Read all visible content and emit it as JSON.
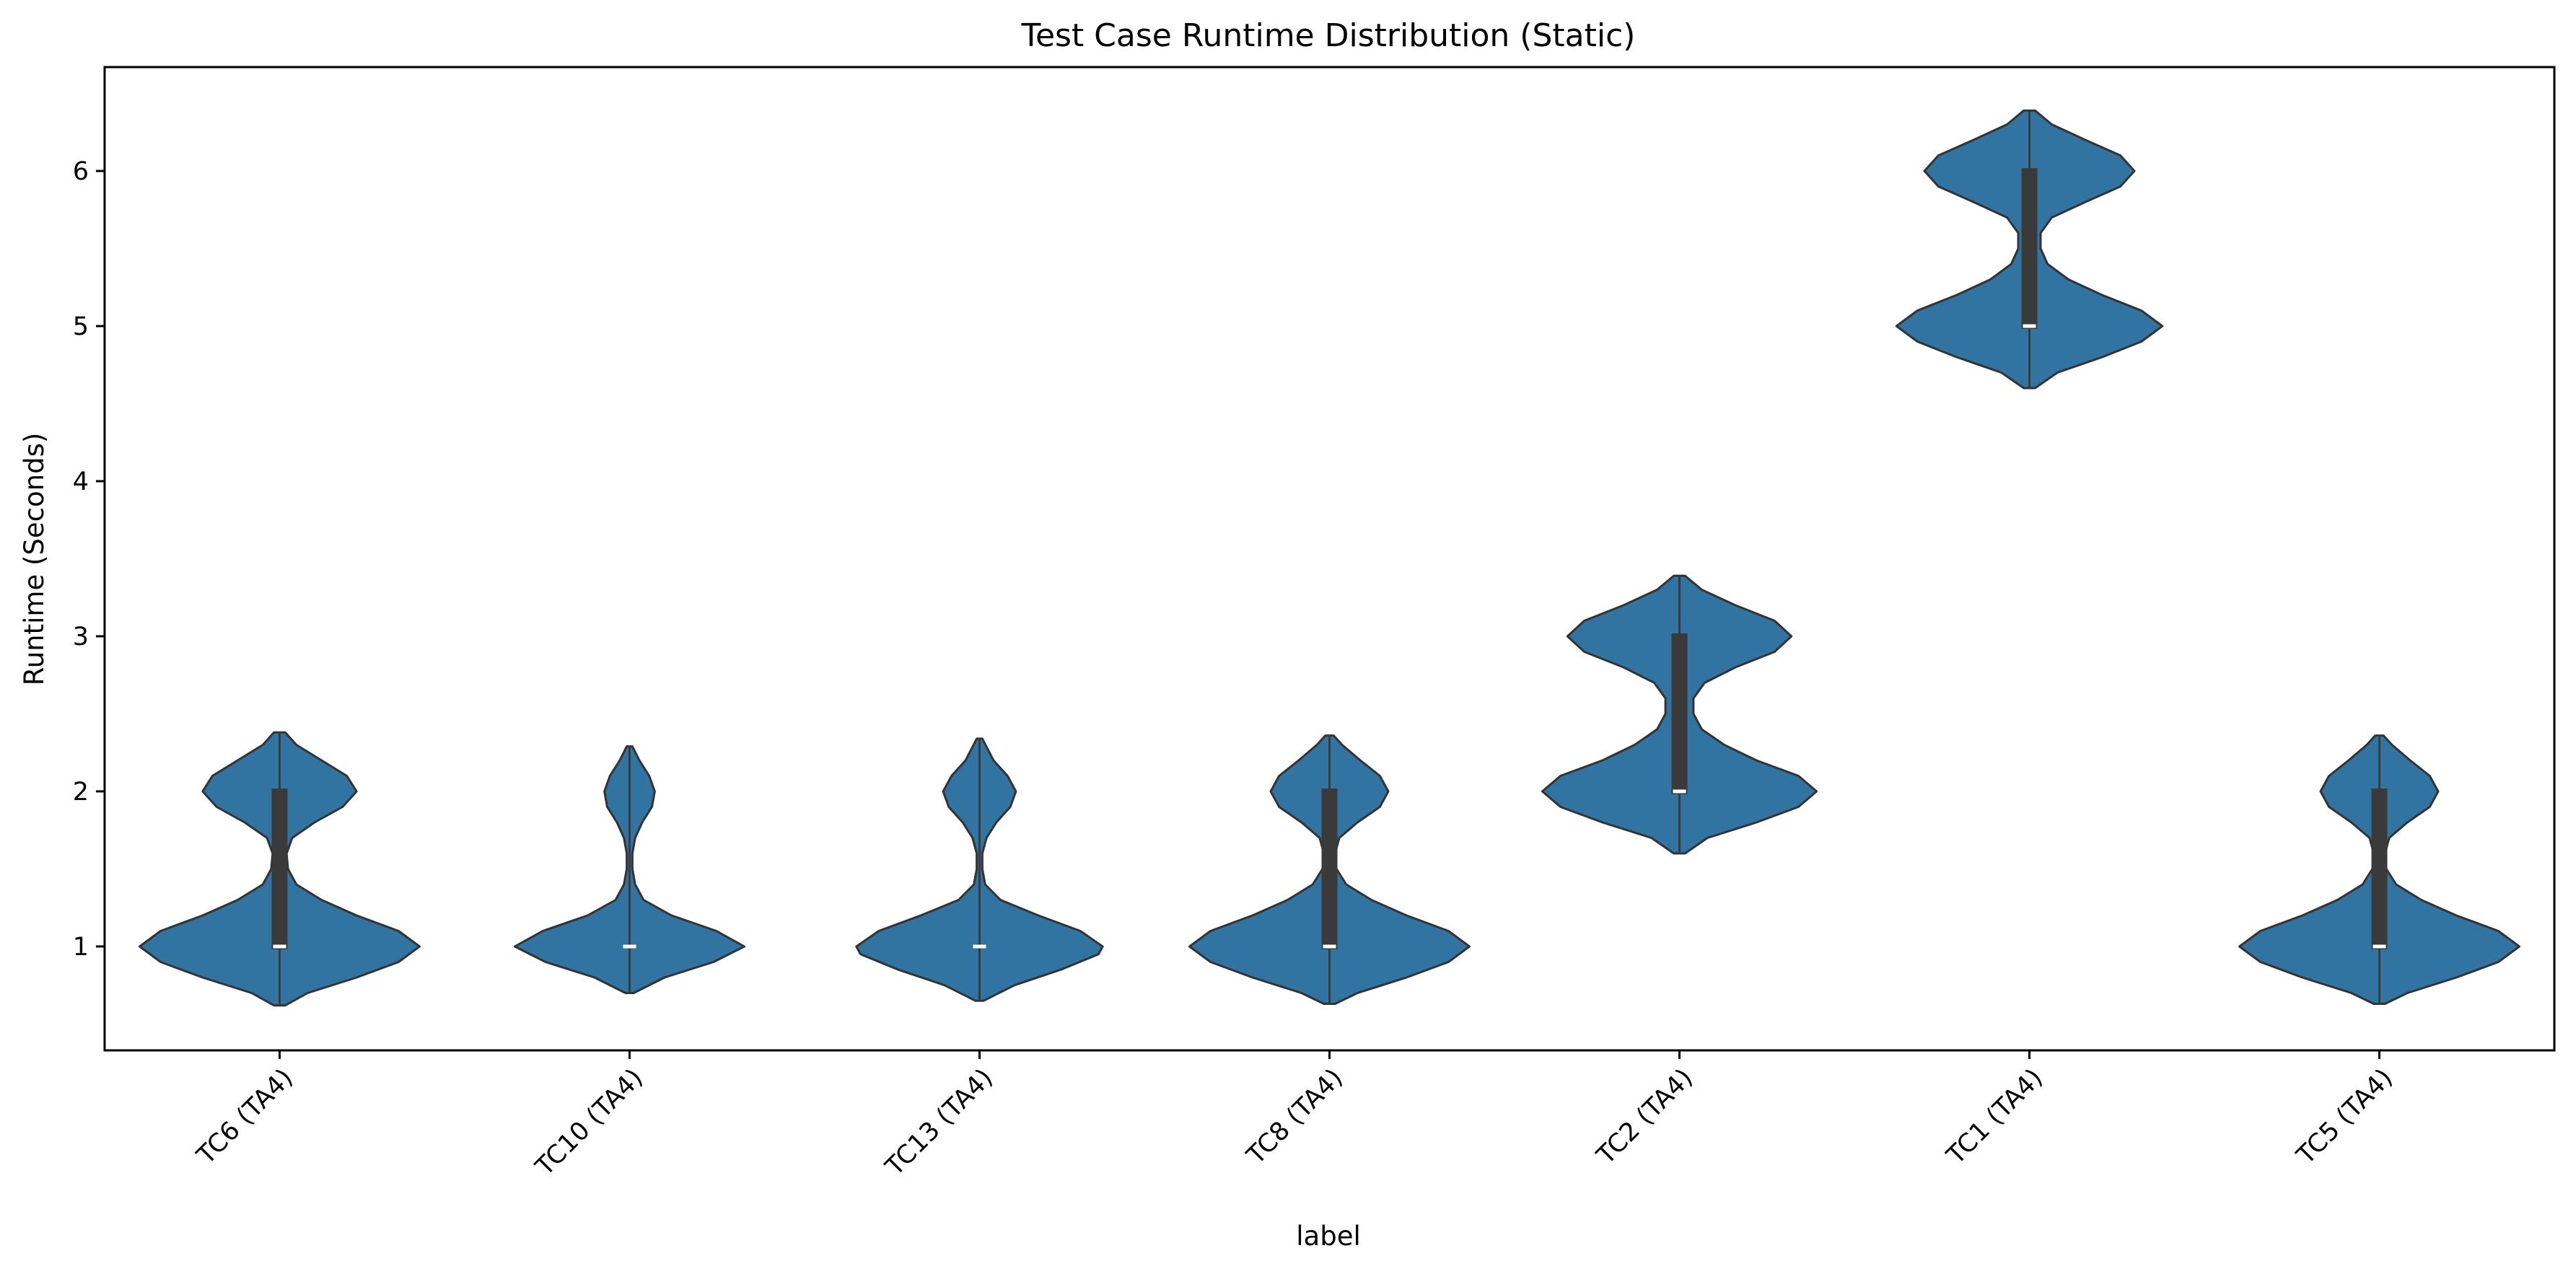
{
  "chart_data": {
    "type": "violin",
    "title": "Test Case Runtime Distribution (Static)",
    "xlabel": "label",
    "ylabel": "Runtime (Seconds)",
    "ylim": [
      0.33,
      6.67
    ],
    "yticks": [
      1,
      2,
      3,
      4,
      5,
      6
    ],
    "grid": false,
    "color": "#3274a1",
    "edge_color": "#333333",
    "box_color": "#3a3a3a",
    "categories": [
      "TC6 (TA4)",
      "TC10 (TA4)",
      "TC13 (TA4)",
      "TC8 (TA4)",
      "TC2 (TA4)",
      "TC1 (TA4)",
      "TC5 (TA4)"
    ],
    "violins": [
      {
        "category": "TC6 (TA4)",
        "min": 0.62,
        "max": 2.38,
        "q1": 1.0,
        "median": 1.0,
        "q3": 2.0,
        "density": [
          [
            0.62,
            0.04
          ],
          [
            0.7,
            0.2
          ],
          [
            0.8,
            0.55
          ],
          [
            0.9,
            0.85
          ],
          [
            1.0,
            1.0
          ],
          [
            1.1,
            0.85
          ],
          [
            1.2,
            0.55
          ],
          [
            1.3,
            0.3
          ],
          [
            1.4,
            0.12
          ],
          [
            1.5,
            0.06
          ],
          [
            1.6,
            0.05
          ],
          [
            1.7,
            0.09
          ],
          [
            1.8,
            0.25
          ],
          [
            1.9,
            0.45
          ],
          [
            2.0,
            0.55
          ],
          [
            2.1,
            0.48
          ],
          [
            2.2,
            0.3
          ],
          [
            2.3,
            0.12
          ],
          [
            2.38,
            0.04
          ]
        ]
      },
      {
        "category": "TC10 (TA4)",
        "min": 0.7,
        "max": 2.29,
        "q1": 1.0,
        "median": 1.0,
        "q3": 1.0,
        "density": [
          [
            0.7,
            0.03
          ],
          [
            0.8,
            0.25
          ],
          [
            0.9,
            0.6
          ],
          [
            1.0,
            0.82
          ],
          [
            1.1,
            0.62
          ],
          [
            1.2,
            0.3
          ],
          [
            1.3,
            0.1
          ],
          [
            1.4,
            0.04
          ],
          [
            1.5,
            0.02
          ],
          [
            1.6,
            0.02
          ],
          [
            1.7,
            0.04
          ],
          [
            1.8,
            0.09
          ],
          [
            1.9,
            0.16
          ],
          [
            2.0,
            0.18
          ],
          [
            2.1,
            0.14
          ],
          [
            2.2,
            0.07
          ],
          [
            2.29,
            0.02
          ]
        ]
      },
      {
        "category": "TC13 (TA4)",
        "min": 0.65,
        "max": 2.34,
        "q1": 1.0,
        "median": 1.0,
        "q3": 1.0,
        "density": [
          [
            0.65,
            0.03
          ],
          [
            0.75,
            0.25
          ],
          [
            0.85,
            0.58
          ],
          [
            0.95,
            0.85
          ],
          [
            1.0,
            0.88
          ],
          [
            1.1,
            0.72
          ],
          [
            1.2,
            0.42
          ],
          [
            1.3,
            0.15
          ],
          [
            1.4,
            0.04
          ],
          [
            1.5,
            0.02
          ],
          [
            1.6,
            0.02
          ],
          [
            1.7,
            0.05
          ],
          [
            1.8,
            0.12
          ],
          [
            1.9,
            0.22
          ],
          [
            2.0,
            0.26
          ],
          [
            2.1,
            0.2
          ],
          [
            2.2,
            0.1
          ],
          [
            2.34,
            0.02
          ]
        ]
      },
      {
        "category": "TC8 (TA4)",
        "min": 0.63,
        "max": 2.36,
        "q1": 1.0,
        "median": 1.0,
        "q3": 2.0,
        "density": [
          [
            0.63,
            0.04
          ],
          [
            0.7,
            0.2
          ],
          [
            0.8,
            0.55
          ],
          [
            0.9,
            0.85
          ],
          [
            1.0,
            1.0
          ],
          [
            1.1,
            0.85
          ],
          [
            1.2,
            0.55
          ],
          [
            1.3,
            0.3
          ],
          [
            1.4,
            0.12
          ],
          [
            1.5,
            0.05
          ],
          [
            1.6,
            0.04
          ],
          [
            1.7,
            0.07
          ],
          [
            1.8,
            0.2
          ],
          [
            1.9,
            0.36
          ],
          [
            2.0,
            0.42
          ],
          [
            2.1,
            0.36
          ],
          [
            2.2,
            0.22
          ],
          [
            2.3,
            0.09
          ],
          [
            2.36,
            0.03
          ]
        ]
      },
      {
        "category": "TC2 (TA4)",
        "min": 1.6,
        "max": 3.39,
        "q1": 2.0,
        "median": 2.0,
        "q3": 3.0,
        "density": [
          [
            1.6,
            0.04
          ],
          [
            1.7,
            0.2
          ],
          [
            1.8,
            0.55
          ],
          [
            1.9,
            0.85
          ],
          [
            2.0,
            0.98
          ],
          [
            2.1,
            0.85
          ],
          [
            2.2,
            0.55
          ],
          [
            2.3,
            0.32
          ],
          [
            2.4,
            0.16
          ],
          [
            2.5,
            0.1
          ],
          [
            2.6,
            0.1
          ],
          [
            2.7,
            0.18
          ],
          [
            2.8,
            0.4
          ],
          [
            2.9,
            0.68
          ],
          [
            3.0,
            0.8
          ],
          [
            3.1,
            0.68
          ],
          [
            3.2,
            0.4
          ],
          [
            3.3,
            0.16
          ],
          [
            3.39,
            0.04
          ]
        ]
      },
      {
        "category": "TC1 (TA4)",
        "min": 4.6,
        "max": 6.39,
        "q1": 5.0,
        "median": 5.0,
        "q3": 6.0,
        "density": [
          [
            4.6,
            0.04
          ],
          [
            4.7,
            0.2
          ],
          [
            4.8,
            0.52
          ],
          [
            4.9,
            0.8
          ],
          [
            5.0,
            0.95
          ],
          [
            5.1,
            0.8
          ],
          [
            5.2,
            0.52
          ],
          [
            5.3,
            0.28
          ],
          [
            5.4,
            0.13
          ],
          [
            5.5,
            0.08
          ],
          [
            5.6,
            0.08
          ],
          [
            5.7,
            0.16
          ],
          [
            5.8,
            0.4
          ],
          [
            5.9,
            0.65
          ],
          [
            6.0,
            0.75
          ],
          [
            6.1,
            0.65
          ],
          [
            6.2,
            0.4
          ],
          [
            6.3,
            0.16
          ],
          [
            6.39,
            0.04
          ]
        ]
      },
      {
        "category": "TC5 (TA4)",
        "min": 0.63,
        "max": 2.36,
        "q1": 1.0,
        "median": 1.0,
        "q3": 2.0,
        "density": [
          [
            0.63,
            0.04
          ],
          [
            0.7,
            0.2
          ],
          [
            0.8,
            0.55
          ],
          [
            0.9,
            0.85
          ],
          [
            1.0,
            1.0
          ],
          [
            1.1,
            0.85
          ],
          [
            1.2,
            0.55
          ],
          [
            1.3,
            0.3
          ],
          [
            1.4,
            0.12
          ],
          [
            1.5,
            0.05
          ],
          [
            1.6,
            0.04
          ],
          [
            1.7,
            0.07
          ],
          [
            1.8,
            0.2
          ],
          [
            1.9,
            0.36
          ],
          [
            2.0,
            0.42
          ],
          [
            2.1,
            0.36
          ],
          [
            2.2,
            0.22
          ],
          [
            2.3,
            0.09
          ],
          [
            2.36,
            0.03
          ]
        ]
      }
    ]
  }
}
